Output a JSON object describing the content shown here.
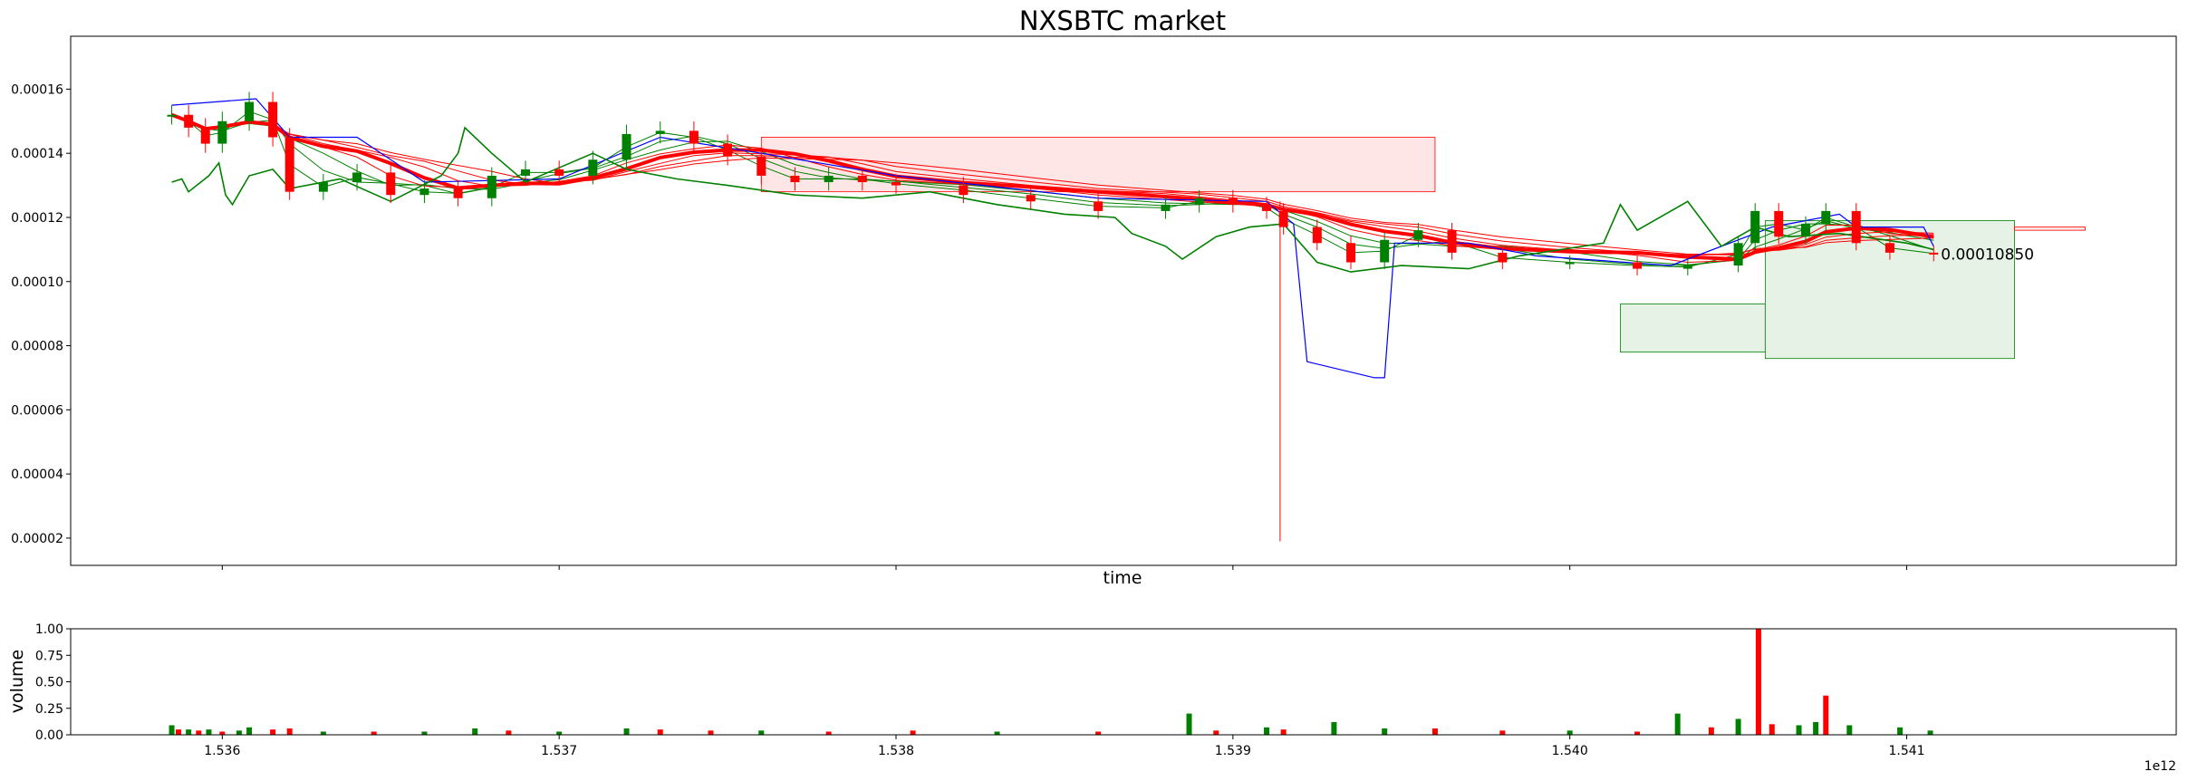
{
  "chart_data": [
    {
      "type": "candlestick",
      "title": "NXSBTC market",
      "xlabel": "time",
      "ylabel": "",
      "x_offset_label": "1e12",
      "xlim": [
        1535550000000,
        1541800000000
      ],
      "ylim": [
        1.15e-05,
        0.0001765
      ],
      "yticks": [
        "0.00002",
        "0.00004",
        "0.00006",
        "0.00008",
        "0.00010",
        "0.00012",
        "0.00014",
        "0.00016"
      ],
      "last_price_label": "0.00010850",
      "last_price": 0.0001085,
      "colors": {
        "up": "#008000",
        "down": "#ff0000",
        "indicator_blue": "#0000ff",
        "cloud_up": "#e6f2e6",
        "cloud_down": "#ffe6e6"
      },
      "price_series": [
        {
          "x": 1535850000000,
          "y": 0.000152
        },
        {
          "x": 1535900000000,
          "y": 0.000148
        },
        {
          "x": 1535950000000,
          "y": 0.000143
        },
        {
          "x": 1536000000000,
          "y": 0.00015
        },
        {
          "x": 1536080000000,
          "y": 0.000156
        },
        {
          "x": 1536150000000,
          "y": 0.000145
        },
        {
          "x": 1536200000000,
          "y": 0.000128
        },
        {
          "x": 1536300000000,
          "y": 0.000131
        },
        {
          "x": 1536400000000,
          "y": 0.000134
        },
        {
          "x": 1536500000000,
          "y": 0.000127
        },
        {
          "x": 1536600000000,
          "y": 0.000129
        },
        {
          "x": 1536700000000,
          "y": 0.000126
        },
        {
          "x": 1536800000000,
          "y": 0.000133
        },
        {
          "x": 1536900000000,
          "y": 0.000135
        },
        {
          "x": 1537000000000,
          "y": 0.000133
        },
        {
          "x": 1537100000000,
          "y": 0.000138
        },
        {
          "x": 1537200000000,
          "y": 0.000146
        },
        {
          "x": 1537300000000,
          "y": 0.000147
        },
        {
          "x": 1537400000000,
          "y": 0.000143
        },
        {
          "x": 1537500000000,
          "y": 0.000139
        },
        {
          "x": 1537600000000,
          "y": 0.000133
        },
        {
          "x": 1537700000000,
          "y": 0.000131
        },
        {
          "x": 1537800000000,
          "y": 0.000133
        },
        {
          "x": 1537900000000,
          "y": 0.000131
        },
        {
          "x": 1538000000000,
          "y": 0.00013
        },
        {
          "x": 1538200000000,
          "y": 0.000127
        },
        {
          "x": 1538400000000,
          "y": 0.000125
        },
        {
          "x": 1538600000000,
          "y": 0.000122
        },
        {
          "x": 1538800000000,
          "y": 0.000124
        },
        {
          "x": 1538900000000,
          "y": 0.000126
        },
        {
          "x": 1539000000000,
          "y": 0.000124
        },
        {
          "x": 1539100000000,
          "y": 0.000122
        },
        {
          "x": 1539150000000,
          "y": 0.000117
        },
        {
          "x": 1539250000000,
          "y": 0.000112
        },
        {
          "x": 1539350000000,
          "y": 0.000106
        },
        {
          "x": 1539450000000,
          "y": 0.000113
        },
        {
          "x": 1539550000000,
          "y": 0.000116
        },
        {
          "x": 1539650000000,
          "y": 0.000109
        },
        {
          "x": 1539800000000,
          "y": 0.000106
        },
        {
          "x": 1540000000000,
          "y": 0.000106
        },
        {
          "x": 1540200000000,
          "y": 0.000104
        },
        {
          "x": 1540350000000,
          "y": 0.000105
        },
        {
          "x": 1540500000000,
          "y": 0.000112
        },
        {
          "x": 1540550000000,
          "y": 0.000122
        },
        {
          "x": 1540620000000,
          "y": 0.000114
        },
        {
          "x": 1540700000000,
          "y": 0.000118
        },
        {
          "x": 1540760000000,
          "y": 0.000122
        },
        {
          "x": 1540850000000,
          "y": 0.000112
        },
        {
          "x": 1540950000000,
          "y": 0.000109
        },
        {
          "x": 1541080000000,
          "y": 0.0001085
        }
      ],
      "blue_line": [
        {
          "x": 1535850000000,
          "y": 0.000155
        },
        {
          "x": 1536100000000,
          "y": 0.000157
        },
        {
          "x": 1536200000000,
          "y": 0.000145
        },
        {
          "x": 1536400000000,
          "y": 0.000145
        },
        {
          "x": 1536600000000,
          "y": 0.000131
        },
        {
          "x": 1537000000000,
          "y": 0.000132
        },
        {
          "x": 1537300000000,
          "y": 0.000145
        },
        {
          "x": 1537600000000,
          "y": 0.00014
        },
        {
          "x": 1538000000000,
          "y": 0.000133
        },
        {
          "x": 1538600000000,
          "y": 0.000126
        },
        {
          "x": 1539100000000,
          "y": 0.000125
        },
        {
          "x": 1539180000000,
          "y": 0.000118
        },
        {
          "x": 1539220000000,
          "y": 7.5e-05
        },
        {
          "x": 1539420000000,
          "y": 7e-05
        },
        {
          "x": 1539450000000,
          "y": 7e-05
        },
        {
          "x": 1539480000000,
          "y": 0.000112
        },
        {
          "x": 1539700000000,
          "y": 0.000112
        },
        {
          "x": 1539900000000,
          "y": 0.000108
        },
        {
          "x": 1540300000000,
          "y": 0.000105
        },
        {
          "x": 1540600000000,
          "y": 0.000117
        },
        {
          "x": 1540800000000,
          "y": 0.000121
        },
        {
          "x": 1540850000000,
          "y": 0.000117
        },
        {
          "x": 1541050000000,
          "y": 0.000117
        },
        {
          "x": 1541080000000,
          "y": 0.000111
        }
      ],
      "green_osc": [
        {
          "x": 1535850000000,
          "y": 0.000131
        },
        {
          "x": 1535880000000,
          "y": 0.000132
        },
        {
          "x": 1535900000000,
          "y": 0.000128
        },
        {
          "x": 1535960000000,
          "y": 0.000133
        },
        {
          "x": 1535990000000,
          "y": 0.000137
        },
        {
          "x": 1536010000000,
          "y": 0.000127
        },
        {
          "x": 1536030000000,
          "y": 0.000124
        },
        {
          "x": 1536080000000,
          "y": 0.000133
        },
        {
          "x": 1536150000000,
          "y": 0.000135
        },
        {
          "x": 1536200000000,
          "y": 0.000129
        },
        {
          "x": 1536350000000,
          "y": 0.000132
        },
        {
          "x": 1536500000000,
          "y": 0.000125
        },
        {
          "x": 1536650000000,
          "y": 0.000133
        },
        {
          "x": 1536700000000,
          "y": 0.00014
        },
        {
          "x": 1536720000000,
          "y": 0.000148
        },
        {
          "x": 1536800000000,
          "y": 0.00014
        },
        {
          "x": 1536900000000,
          "y": 0.000131
        },
        {
          "x": 1537100000000,
          "y": 0.00014
        },
        {
          "x": 1537200000000,
          "y": 0.000135
        },
        {
          "x": 1537350000000,
          "y": 0.000132
        },
        {
          "x": 1537500000000,
          "y": 0.00013
        },
        {
          "x": 1537700000000,
          "y": 0.000127
        },
        {
          "x": 1537900000000,
          "y": 0.000126
        },
        {
          "x": 1538100000000,
          "y": 0.000128
        },
        {
          "x": 1538300000000,
          "y": 0.000124
        },
        {
          "x": 1538500000000,
          "y": 0.000121
        },
        {
          "x": 1538650000000,
          "y": 0.00012
        },
        {
          "x": 1538700000000,
          "y": 0.000115
        },
        {
          "x": 1538800000000,
          "y": 0.000111
        },
        {
          "x": 1538850000000,
          "y": 0.000107
        },
        {
          "x": 1538950000000,
          "y": 0.000114
        },
        {
          "x": 1539050000000,
          "y": 0.000117
        },
        {
          "x": 1539150000000,
          "y": 0.000118
        },
        {
          "x": 1539250000000,
          "y": 0.000106
        },
        {
          "x": 1539350000000,
          "y": 0.000103
        },
        {
          "x": 1539500000000,
          "y": 0.000105
        },
        {
          "x": 1539700000000,
          "y": 0.000104
        },
        {
          "x": 1539850000000,
          "y": 0.000108
        },
        {
          "x": 1540100000000,
          "y": 0.000112
        },
        {
          "x": 1540150000000,
          "y": 0.000124
        },
        {
          "x": 1540200000000,
          "y": 0.000116
        },
        {
          "x": 1540300000000,
          "y": 0.000122
        },
        {
          "x": 1540350000000,
          "y": 0.000125
        },
        {
          "x": 1540450000000,
          "y": 0.000111
        },
        {
          "x": 1540550000000,
          "y": 0.000117
        },
        {
          "x": 1540650000000,
          "y": 0.000114
        },
        {
          "x": 1540800000000,
          "y": 0.000115
        },
        {
          "x": 1541000000000,
          "y": 0.000112
        },
        {
          "x": 1541080000000,
          "y": 0.00011
        }
      ],
      "red_spike": {
        "x": 1539140000000,
        "low": 1.9e-05,
        "high": 0.000125
      },
      "cloud": [
        {
          "from": 1537600000000,
          "to": 1539600000000,
          "upper": 0.000145,
          "lower": 0.000128,
          "color": "cloud_down"
        },
        {
          "from": 1540150000000,
          "to": 1540580000000,
          "upper": 9.3e-05,
          "lower": 7.8e-05,
          "color": "cloud_up"
        },
        {
          "from": 1540580000000,
          "to": 1541320000000,
          "upper": 0.000119,
          "lower": 7.6e-05,
          "color": "cloud_up"
        },
        {
          "from": 1541320000000,
          "to": 1541530000000,
          "upper": 0.000117,
          "lower": 0.000116,
          "color": "cloud_down"
        }
      ],
      "volume": {
        "ylabel": "volume",
        "ylim": [
          0,
          1.0
        ],
        "yticks": [
          "0.00",
          "0.25",
          "0.50",
          "0.75",
          "1.00"
        ],
        "xticks": [
          "1.536",
          "1.537",
          "1.538",
          "1.539",
          "1.540",
          "1.541"
        ],
        "bars": [
          {
            "x": 1535850000000,
            "v": 0.09,
            "d": "up"
          },
          {
            "x": 1535870000000,
            "v": 0.05,
            "d": "down"
          },
          {
            "x": 1535900000000,
            "v": 0.05,
            "d": "up"
          },
          {
            "x": 1535930000000,
            "v": 0.04,
            "d": "down"
          },
          {
            "x": 1535960000000,
            "v": 0.05,
            "d": "up"
          },
          {
            "x": 1536000000000,
            "v": 0.03,
            "d": "down"
          },
          {
            "x": 1536050000000,
            "v": 0.04,
            "d": "up"
          },
          {
            "x": 1536080000000,
            "v": 0.07,
            "d": "up"
          },
          {
            "x": 1536150000000,
            "v": 0.05,
            "d": "down"
          },
          {
            "x": 1536200000000,
            "v": 0.06,
            "d": "down"
          },
          {
            "x": 1536300000000,
            "v": 0.03,
            "d": "up"
          },
          {
            "x": 1536450000000,
            "v": 0.03,
            "d": "down"
          },
          {
            "x": 1536600000000,
            "v": 0.03,
            "d": "up"
          },
          {
            "x": 1536750000000,
            "v": 0.06,
            "d": "up"
          },
          {
            "x": 1536850000000,
            "v": 0.04,
            "d": "down"
          },
          {
            "x": 1537000000000,
            "v": 0.03,
            "d": "up"
          },
          {
            "x": 1537200000000,
            "v": 0.06,
            "d": "up"
          },
          {
            "x": 1537300000000,
            "v": 0.05,
            "d": "down"
          },
          {
            "x": 1537450000000,
            "v": 0.04,
            "d": "down"
          },
          {
            "x": 1537600000000,
            "v": 0.04,
            "d": "up"
          },
          {
            "x": 1537800000000,
            "v": 0.03,
            "d": "down"
          },
          {
            "x": 1538050000000,
            "v": 0.04,
            "d": "down"
          },
          {
            "x": 1538300000000,
            "v": 0.03,
            "d": "up"
          },
          {
            "x": 1538600000000,
            "v": 0.03,
            "d": "down"
          },
          {
            "x": 1538870000000,
            "v": 0.2,
            "d": "up"
          },
          {
            "x": 1538950000000,
            "v": 0.04,
            "d": "down"
          },
          {
            "x": 1539100000000,
            "v": 0.07,
            "d": "up"
          },
          {
            "x": 1539150000000,
            "v": 0.05,
            "d": "down"
          },
          {
            "x": 1539300000000,
            "v": 0.12,
            "d": "up"
          },
          {
            "x": 1539450000000,
            "v": 0.06,
            "d": "up"
          },
          {
            "x": 1539600000000,
            "v": 0.06,
            "d": "down"
          },
          {
            "x": 1539800000000,
            "v": 0.04,
            "d": "down"
          },
          {
            "x": 1540000000000,
            "v": 0.04,
            "d": "up"
          },
          {
            "x": 1540200000000,
            "v": 0.03,
            "d": "down"
          },
          {
            "x": 1540320000000,
            "v": 0.2,
            "d": "up"
          },
          {
            "x": 1540420000000,
            "v": 0.07,
            "d": "down"
          },
          {
            "x": 1540500000000,
            "v": 0.15,
            "d": "up"
          },
          {
            "x": 1540560000000,
            "v": 1.0,
            "d": "down"
          },
          {
            "x": 1540600000000,
            "v": 0.1,
            "d": "down"
          },
          {
            "x": 1540680000000,
            "v": 0.09,
            "d": "up"
          },
          {
            "x": 1540730000000,
            "v": 0.12,
            "d": "up"
          },
          {
            "x": 1540760000000,
            "v": 0.37,
            "d": "down"
          },
          {
            "x": 1540830000000,
            "v": 0.09,
            "d": "up"
          },
          {
            "x": 1540980000000,
            "v": 0.07,
            "d": "up"
          },
          {
            "x": 1541070000000,
            "v": 0.04,
            "d": "up"
          }
        ]
      }
    }
  ]
}
